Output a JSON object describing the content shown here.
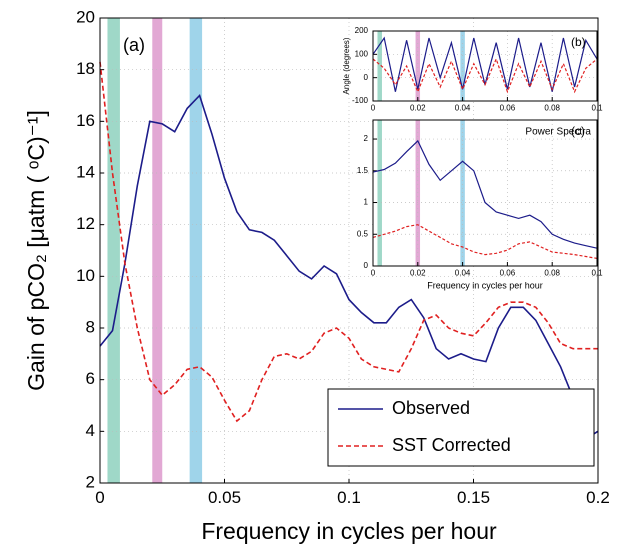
{
  "chart_data": [
    {
      "type": "line",
      "xlabel": "Frequency in cycles per hour",
      "ylabel": "Gain of pCO₂ [μatm ( ᵒC)⁻¹]",
      "annotation": "(a)",
      "xlim": [
        0,
        0.2
      ],
      "ylim": [
        2,
        20
      ],
      "xticks": [
        0,
        0.05,
        0.1,
        0.15,
        0.2
      ],
      "yticks": [
        2,
        4,
        6,
        8,
        10,
        12,
        14,
        16,
        18,
        20
      ],
      "grid": true,
      "legend": "lower right",
      "bands": [
        {
          "x": [
            0.003,
            0.008
          ],
          "color": "#9fd8c8"
        },
        {
          "x": [
            0.021,
            0.025
          ],
          "color": "#e2a8d4"
        },
        {
          "x": [
            0.036,
            0.041
          ],
          "color": "#9fd4ea"
        }
      ],
      "x": [
        0,
        0.005,
        0.01,
        0.015,
        0.02,
        0.025,
        0.03,
        0.035,
        0.04,
        0.045,
        0.05,
        0.055,
        0.06,
        0.065,
        0.07,
        0.075,
        0.08,
        0.085,
        0.09,
        0.095,
        0.1,
        0.105,
        0.11,
        0.115,
        0.12,
        0.125,
        0.13,
        0.135,
        0.14,
        0.145,
        0.15,
        0.155,
        0.16,
        0.165,
        0.17,
        0.175,
        0.18,
        0.185,
        0.19,
        0.195,
        0.2
      ],
      "series": [
        {
          "name": "Observed",
          "color": "#1c1c8a",
          "linestyle": "solid",
          "values": [
            7.3,
            7.9,
            10.5,
            13.5,
            16.0,
            15.9,
            15.6,
            16.5,
            17.0,
            15.5,
            13.8,
            12.5,
            11.8,
            11.7,
            11.4,
            10.8,
            10.2,
            9.9,
            10.4,
            10.1,
            9.1,
            8.6,
            8.2,
            8.2,
            8.8,
            9.1,
            8.4,
            7.2,
            6.8,
            7.0,
            6.8,
            6.7,
            8.0,
            8.8,
            8.8,
            8.3,
            7.4,
            6.5,
            5.3,
            3.7,
            4.0
          ]
        },
        {
          "name": "SST Corrected",
          "color": "#e02020",
          "linestyle": "dashed",
          "values": [
            18.3,
            14.0,
            10.5,
            8.0,
            6.0,
            5.4,
            5.8,
            6.4,
            6.5,
            6.1,
            5.2,
            4.4,
            4.8,
            6.0,
            6.9,
            7.0,
            6.8,
            7.1,
            7.8,
            8.0,
            7.6,
            6.8,
            6.5,
            6.4,
            6.3,
            7.2,
            8.3,
            8.5,
            8.0,
            7.8,
            7.7,
            8.2,
            8.8,
            9.0,
            9.0,
            8.8,
            8.2,
            7.4,
            7.2,
            7.2,
            7.2
          ]
        }
      ]
    },
    {
      "type": "line",
      "ylabel": "Angle (degrees)",
      "annotation": "(b)",
      "xlim": [
        0,
        0.1
      ],
      "ylim": [
        -100,
        200
      ],
      "xticks": [
        0,
        0.02,
        0.04,
        0.06,
        0.08,
        0.1
      ],
      "yticks": [
        -100,
        0,
        100,
        200
      ],
      "grid": true,
      "bands": [
        {
          "x": [
            0.002,
            0.004
          ],
          "color": "#9fd8c8"
        },
        {
          "x": [
            0.019,
            0.021
          ],
          "color": "#e2a8d4"
        },
        {
          "x": [
            0.039,
            0.041
          ],
          "color": "#9fd4ea"
        }
      ],
      "x": [
        0,
        0.005,
        0.01,
        0.015,
        0.02,
        0.025,
        0.03,
        0.035,
        0.04,
        0.045,
        0.05,
        0.055,
        0.06,
        0.065,
        0.07,
        0.075,
        0.08,
        0.085,
        0.09,
        0.095,
        0.1
      ],
      "series": [
        {
          "color": "#1c1c8a",
          "linestyle": "solid",
          "values": [
            100,
            170,
            -60,
            160,
            -50,
            170,
            0,
            150,
            -50,
            170,
            -30,
            150,
            -50,
            170,
            -40,
            150,
            -60,
            170,
            -40,
            160,
            80
          ]
        },
        {
          "color": "#e02020",
          "linestyle": "dashed",
          "values": [
            80,
            40,
            -30,
            50,
            -60,
            60,
            -40,
            70,
            -50,
            60,
            -30,
            80,
            -60,
            60,
            -40,
            70,
            -50,
            60,
            -60,
            40,
            80
          ]
        }
      ]
    },
    {
      "type": "line",
      "title": "Power Spectra",
      "xlabel": "Frequency in cycles per hour",
      "annotation": "(c)",
      "xlim": [
        0,
        0.1
      ],
      "ylim": [
        0,
        2.3
      ],
      "xticks": [
        0,
        0.02,
        0.04,
        0.06,
        0.08,
        0.1
      ],
      "yticks": [
        0,
        0.5,
        1,
        1.5,
        2
      ],
      "grid": true,
      "bands": [
        {
          "x": [
            0.002,
            0.004
          ],
          "color": "#9fd8c8"
        },
        {
          "x": [
            0.019,
            0.021
          ],
          "color": "#e2a8d4"
        },
        {
          "x": [
            0.039,
            0.041
          ],
          "color": "#9fd4ea"
        }
      ],
      "x": [
        0,
        0.005,
        0.01,
        0.015,
        0.02,
        0.025,
        0.03,
        0.035,
        0.04,
        0.045,
        0.05,
        0.055,
        0.06,
        0.065,
        0.07,
        0.075,
        0.08,
        0.085,
        0.09,
        0.095,
        0.1
      ],
      "series": [
        {
          "color": "#1c1c8a",
          "linestyle": "solid",
          "values": [
            1.48,
            1.52,
            1.62,
            1.8,
            1.97,
            1.6,
            1.35,
            1.5,
            1.65,
            1.5,
            1.0,
            0.85,
            0.8,
            0.75,
            0.8,
            0.7,
            0.5,
            0.42,
            0.36,
            0.32,
            0.28
          ]
        },
        {
          "color": "#e02020",
          "linestyle": "dashed",
          "values": [
            0.45,
            0.5,
            0.55,
            0.62,
            0.65,
            0.55,
            0.45,
            0.35,
            0.3,
            0.22,
            0.18,
            0.2,
            0.25,
            0.35,
            0.38,
            0.3,
            0.22,
            0.2,
            0.18,
            0.15,
            0.12
          ]
        }
      ]
    }
  ]
}
